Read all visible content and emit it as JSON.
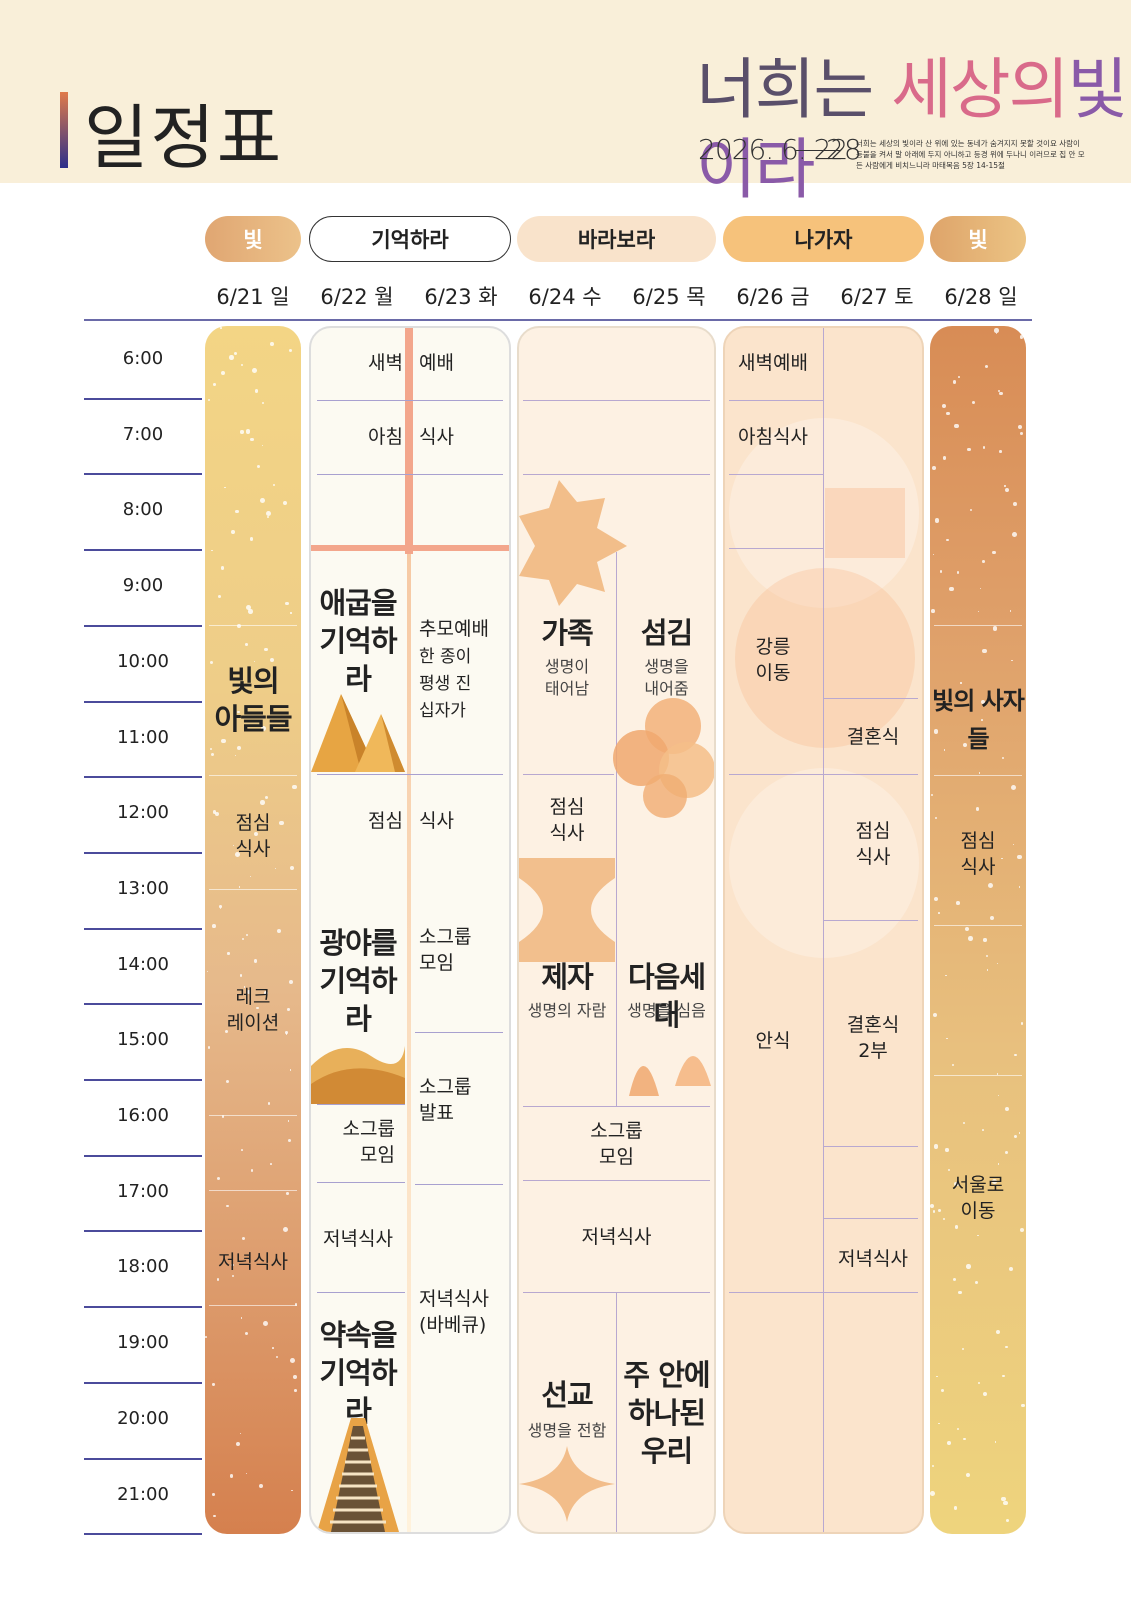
{
  "header": {
    "title": "일정표",
    "theme": {
      "part1": "너희는 ",
      "part2": "세상의",
      "part3": "빛이라"
    },
    "date_range": "2026. 6. 22",
    "date_end": "28",
    "verse": "너희는 세상의 빛이라 산 위에 있는 동네가 숨겨지지 못할 것이요 사람이 등불을 켜서 말 아래에 두지 아니하고 등경 위에 두나니 이러므로 집 안 모든 사람에게 비치느니라 마태복음 5장 14-15절"
  },
  "phases": [
    "빛",
    "기억하라",
    "바라보라",
    "나가자",
    "빛"
  ],
  "days": [
    "6/21 일",
    "6/22 월",
    "6/23 화",
    "6/24 수",
    "6/25 목",
    "6/26 금",
    "6/27 토",
    "6/28 일"
  ],
  "times": [
    "6:00",
    "7:00",
    "8:00",
    "9:00",
    "10:00",
    "11:00",
    "12:00",
    "13:00",
    "14:00",
    "15:00",
    "16:00",
    "17:00",
    "18:00",
    "19:00",
    "20:00",
    "21:00"
  ],
  "d21": {
    "main": "빛의\n아들들",
    "lunch": "점심\n식사",
    "rec": "레크\n레이션",
    "dinner": "저녁식사"
  },
  "d22": {
    "dawn_a": "새벽",
    "dawn_b": "예배",
    "bf_a": "아침",
    "bf_b": "식사",
    "s1_title": "애굽을\n기억하라",
    "memorial": "추모예배",
    "memorial_sub": "한 종이\n평생 진\n십자가",
    "lunch_a": "점심",
    "lunch_b": "식사",
    "s2_title": "광야를\n기억하라",
    "sg1": "소그룹\n모임",
    "sg_present": "소그룹\n발표",
    "sg2": "소그룹\n모임",
    "dinner_a": "저녁식사",
    "bbq": "저녁식사\n(바베큐)",
    "s3_title": "약속을\n기억하라"
  },
  "d24": {
    "dawn": "새벽예배",
    "bf": "아침식사",
    "family": "가족",
    "family_sub": "생명이\n태어남",
    "serve": "섬김",
    "serve_sub": "생명을\n내어줌",
    "lunch": "점심\n식사",
    "disciple": "제자",
    "disciple_sub": "생명의 자람",
    "next": "다음세대",
    "next_sub": "생명을 심음",
    "sg": "소그룹\n모임",
    "dinner": "저녁식사",
    "mission": "선교",
    "mission_sub": "생명을 전함",
    "one": "주 안에\n하나된\n우리"
  },
  "d26": {
    "dawn": "새벽예배",
    "bf": "아침식사",
    "move": "강릉\n이동",
    "rest": "안식",
    "wedding": "결혼식",
    "lunch": "점심\n식사",
    "wedding2": "결혼식\n2부",
    "dinner": "저녁식사"
  },
  "d28": {
    "main": "빛의 사자들",
    "lunch": "점심\n식사",
    "move": "서울로\n이동"
  }
}
